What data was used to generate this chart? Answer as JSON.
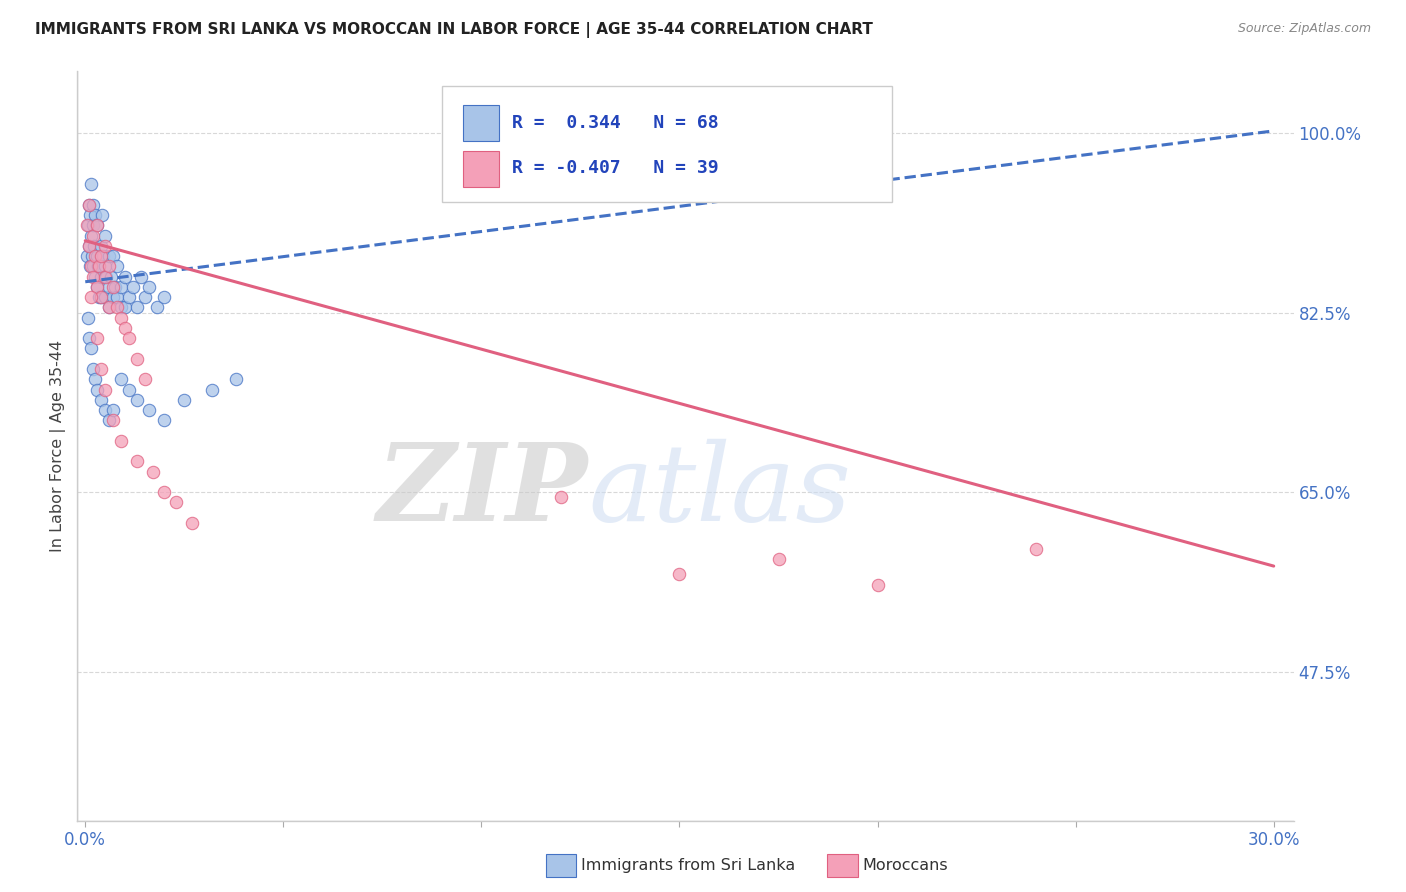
{
  "title": "IMMIGRANTS FROM SRI LANKA VS MOROCCAN IN LABOR FORCE | AGE 35-44 CORRELATION CHART",
  "source": "Source: ZipAtlas.com",
  "ylabel": "In Labor Force | Age 35-44",
  "xlim": [
    -0.002,
    0.305
  ],
  "ylim": [
    0.33,
    1.06
  ],
  "xticks": [
    0.0,
    0.05,
    0.1,
    0.15,
    0.2,
    0.25,
    0.3
  ],
  "xticklabels": [
    "0.0%",
    "",
    "",
    "",
    "",
    "",
    "30.0%"
  ],
  "ytick_positions": [
    0.475,
    0.65,
    0.825,
    1.0
  ],
  "ytick_labels": [
    "47.5%",
    "65.0%",
    "82.5%",
    "100.0%"
  ],
  "sri_lanka_R": 0.344,
  "sri_lanka_N": 68,
  "moroccan_R": -0.407,
  "moroccan_N": 39,
  "blue_fill": "#a8c4e8",
  "blue_edge": "#4472c4",
  "pink_fill": "#f4a0b8",
  "pink_edge": "#e06080",
  "trend_blue": "#4472c4",
  "trend_pink": "#e06080",
  "watermark_text": "ZIPatlas",
  "watermark_color": "#ccdcf2",
  "bg": "#ffffff",
  "grid_color": "#d8d8d8",
  "tick_color": "#4472c4",
  "title_color": "#222222",
  "sri_lanka_trend_x": [
    0.0,
    0.3
  ],
  "sri_lanka_trend_y": [
    0.855,
    1.002
  ],
  "moroccan_trend_x": [
    0.0,
    0.3
  ],
  "moroccan_trend_y": [
    0.895,
    0.578
  ],
  "sl_x": [
    0.0005,
    0.0008,
    0.001,
    0.001,
    0.0012,
    0.0013,
    0.0015,
    0.0015,
    0.0018,
    0.002,
    0.002,
    0.002,
    0.0022,
    0.0025,
    0.0025,
    0.003,
    0.003,
    0.003,
    0.0032,
    0.0035,
    0.004,
    0.004,
    0.0042,
    0.0045,
    0.004,
    0.005,
    0.005,
    0.005,
    0.0052,
    0.006,
    0.006,
    0.006,
    0.0065,
    0.007,
    0.007,
    0.0075,
    0.008,
    0.008,
    0.009,
    0.009,
    0.01,
    0.01,
    0.011,
    0.012,
    0.013,
    0.014,
    0.015,
    0.016,
    0.018,
    0.02,
    0.0008,
    0.001,
    0.0015,
    0.002,
    0.0025,
    0.003,
    0.004,
    0.005,
    0.006,
    0.007,
    0.009,
    0.011,
    0.013,
    0.016,
    0.02,
    0.025,
    0.032,
    0.038
  ],
  "sl_y": [
    0.88,
    0.91,
    0.89,
    0.93,
    0.87,
    0.92,
    0.9,
    0.95,
    0.88,
    0.91,
    0.87,
    0.93,
    0.89,
    0.86,
    0.92,
    0.88,
    0.85,
    0.91,
    0.87,
    0.84,
    0.89,
    0.86,
    0.92,
    0.88,
    0.84,
    0.87,
    0.84,
    0.9,
    0.86,
    0.85,
    0.88,
    0.83,
    0.86,
    0.84,
    0.88,
    0.85,
    0.84,
    0.87,
    0.85,
    0.83,
    0.86,
    0.83,
    0.84,
    0.85,
    0.83,
    0.86,
    0.84,
    0.85,
    0.83,
    0.84,
    0.82,
    0.8,
    0.79,
    0.77,
    0.76,
    0.75,
    0.74,
    0.73,
    0.72,
    0.73,
    0.76,
    0.75,
    0.74,
    0.73,
    0.72,
    0.74,
    0.75,
    0.76
  ],
  "mo_x": [
    0.0005,
    0.001,
    0.001,
    0.0015,
    0.002,
    0.002,
    0.0025,
    0.003,
    0.003,
    0.0035,
    0.004,
    0.004,
    0.005,
    0.005,
    0.006,
    0.006,
    0.007,
    0.008,
    0.009,
    0.01,
    0.011,
    0.013,
    0.015,
    0.0015,
    0.003,
    0.004,
    0.005,
    0.007,
    0.009,
    0.013,
    0.017,
    0.02,
    0.023,
    0.027,
    0.12,
    0.15,
    0.175,
    0.2,
    0.24
  ],
  "mo_y": [
    0.91,
    0.89,
    0.93,
    0.87,
    0.9,
    0.86,
    0.88,
    0.85,
    0.91,
    0.87,
    0.84,
    0.88,
    0.86,
    0.89,
    0.83,
    0.87,
    0.85,
    0.83,
    0.82,
    0.81,
    0.8,
    0.78,
    0.76,
    0.84,
    0.8,
    0.77,
    0.75,
    0.72,
    0.7,
    0.68,
    0.67,
    0.65,
    0.64,
    0.62,
    0.645,
    0.57,
    0.585,
    0.56,
    0.595
  ]
}
